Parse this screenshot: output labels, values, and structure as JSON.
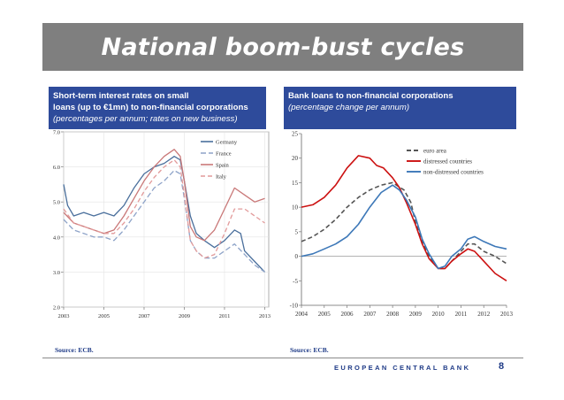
{
  "slide": {
    "title": "National boom-bust cycles",
    "footer": "EUROPEAN CENTRAL BANK",
    "page_number": "8"
  },
  "panels": [
    {
      "header_line1": "Short-term interest rates on small",
      "header_line2": "loans (up to €1mn) to non-financial corporations",
      "header_line3": "(percentages per annum; rates on new business)",
      "source": "Source: ECB."
    },
    {
      "header_line1": "Bank loans to non-financial corporations",
      "header_line2": "(percentage change per annum)",
      "source": "Source: ECB."
    }
  ],
  "chart_data": [
    {
      "type": "line",
      "title": "",
      "xlabel": "",
      "ylabel": "",
      "x_ticks": [
        "2003",
        "2005",
        "2007",
        "2009",
        "2011",
        "2013"
      ],
      "y_ticks": [
        "2.0",
        "3.0",
        "4.0",
        "5.0",
        "6.0",
        "7.0"
      ],
      "xlim": [
        2003,
        2013.2
      ],
      "ylim": [
        2.0,
        7.0
      ],
      "legend_position": "top-right",
      "series": [
        {
          "name": "Germany",
          "color": "#4a6f9c",
          "dash": "solid",
          "x": [
            2003,
            2003.2,
            2003.5,
            2004,
            2004.5,
            2005,
            2005.5,
            2006,
            2006.5,
            2007,
            2007.5,
            2008,
            2008.5,
            2008.8,
            2009,
            2009.3,
            2009.6,
            2010,
            2010.5,
            2011,
            2011.5,
            2011.8,
            2012,
            2012.5,
            2013
          ],
          "y": [
            5.5,
            4.9,
            4.6,
            4.7,
            4.6,
            4.7,
            4.6,
            4.9,
            5.4,
            5.8,
            6.0,
            6.1,
            6.3,
            6.2,
            5.6,
            4.6,
            4.1,
            3.9,
            3.7,
            3.9,
            4.2,
            4.1,
            3.6,
            3.3,
            3.0
          ]
        },
        {
          "name": "France",
          "color": "#8ea3c8",
          "dash": "6,3",
          "x": [
            2003,
            2003.5,
            2004,
            2004.5,
            2005,
            2005.5,
            2006,
            2006.5,
            2007,
            2007.5,
            2008,
            2008.5,
            2008.8,
            2009,
            2009.3,
            2009.6,
            2010,
            2010.5,
            2011,
            2011.5,
            2012,
            2012.5,
            2013
          ],
          "y": [
            4.5,
            4.2,
            4.1,
            4.0,
            4.0,
            3.9,
            4.2,
            4.6,
            5.0,
            5.4,
            5.6,
            5.9,
            5.8,
            5.1,
            3.9,
            3.6,
            3.4,
            3.4,
            3.6,
            3.8,
            3.5,
            3.2,
            3.0
          ]
        },
        {
          "name": "Spain",
          "color": "#c97878",
          "dash": "solid",
          "x": [
            2003,
            2003.5,
            2004,
            2004.5,
            2005,
            2005.5,
            2006,
            2006.5,
            2007,
            2007.5,
            2008,
            2008.5,
            2008.8,
            2009,
            2009.3,
            2009.6,
            2010,
            2010.5,
            2011,
            2011.5,
            2012,
            2012.5,
            2013
          ],
          "y": [
            4.7,
            4.4,
            4.3,
            4.2,
            4.1,
            4.2,
            4.6,
            5.1,
            5.6,
            6.0,
            6.3,
            6.5,
            6.3,
            5.6,
            4.3,
            4.0,
            3.9,
            4.2,
            4.8,
            5.4,
            5.2,
            5.0,
            5.1
          ]
        },
        {
          "name": "Italy",
          "color": "#e29a9a",
          "dash": "5,3",
          "x": [
            2003,
            2003.5,
            2004,
            2004.5,
            2005,
            2005.5,
            2006,
            2006.5,
            2007,
            2007.5,
            2008,
            2008.5,
            2008.8,
            2009,
            2009.3,
            2009.6,
            2010,
            2010.5,
            2011,
            2011.5,
            2012,
            2012.5,
            2013
          ],
          "y": [
            4.8,
            4.4,
            4.3,
            4.2,
            4.1,
            4.1,
            4.4,
            4.8,
            5.3,
            5.7,
            6.0,
            6.2,
            6.0,
            5.2,
            3.9,
            3.6,
            3.4,
            3.5,
            4.1,
            4.8,
            4.8,
            4.6,
            4.4
          ]
        }
      ]
    },
    {
      "type": "line",
      "title": "",
      "xlabel": "",
      "ylabel": "",
      "x_ticks": [
        "2004",
        "2005",
        "2006",
        "2007",
        "2008",
        "2009",
        "2010",
        "2011",
        "2012",
        "2013"
      ],
      "y_ticks": [
        "25",
        "20",
        "15",
        "10",
        "5",
        "0",
        "-5",
        "-10"
      ],
      "xlim": [
        2004,
        2013
      ],
      "ylim": [
        -10,
        25
      ],
      "grid": false,
      "legend_position": "top-right",
      "series": [
        {
          "name": "euro area",
          "color": "#555555",
          "dash": "5,3",
          "x": [
            2004,
            2004.5,
            2005,
            2005.5,
            2006,
            2006.5,
            2007,
            2007.5,
            2008,
            2008.5,
            2008.8,
            2009,
            2009.3,
            2009.6,
            2010,
            2010.3,
            2010.6,
            2011,
            2011.3,
            2011.6,
            2012,
            2012.5,
            2013
          ],
          "y": [
            3,
            4,
            5.5,
            7.5,
            10,
            12,
            13.5,
            14.5,
            15,
            13.5,
            11,
            7,
            3,
            0,
            -2.5,
            -2.5,
            -1,
            1,
            2.5,
            2.5,
            1,
            0,
            -1.5
          ]
        },
        {
          "name": "distressed countries",
          "color": "#cc1111",
          "dash": "solid",
          "x": [
            2004,
            2004.5,
            2005,
            2005.5,
            2006,
            2006.5,
            2007,
            2007.3,
            2007.6,
            2008,
            2008.3,
            2008.6,
            2009,
            2009.3,
            2009.6,
            2010,
            2010.3,
            2010.6,
            2011,
            2011.3,
            2011.6,
            2012,
            2012.5,
            2013
          ],
          "y": [
            10,
            10.5,
            12,
            14.5,
            18,
            20.5,
            20,
            18.5,
            18,
            16,
            14,
            11,
            6.5,
            2.5,
            -0.5,
            -2.5,
            -2.5,
            -1,
            0.5,
            1.5,
            1,
            -1,
            -3.5,
            -5
          ]
        },
        {
          "name": "non-distressed countries",
          "color": "#3d78b8",
          "dash": "solid",
          "x": [
            2004,
            2004.5,
            2005,
            2005.5,
            2006,
            2006.5,
            2007,
            2007.5,
            2008,
            2008.3,
            2008.6,
            2009,
            2009.3,
            2009.6,
            2010,
            2010.3,
            2010.6,
            2011,
            2011.3,
            2011.6,
            2012,
            2012.5,
            2013
          ],
          "y": [
            0,
            0.5,
            1.5,
            2.5,
            4,
            6.5,
            10,
            13,
            14.5,
            13.5,
            11.5,
            8,
            3.5,
            0.5,
            -2.5,
            -2,
            0,
            1.5,
            3.5,
            4,
            3,
            2,
            1.5
          ]
        }
      ]
    }
  ]
}
